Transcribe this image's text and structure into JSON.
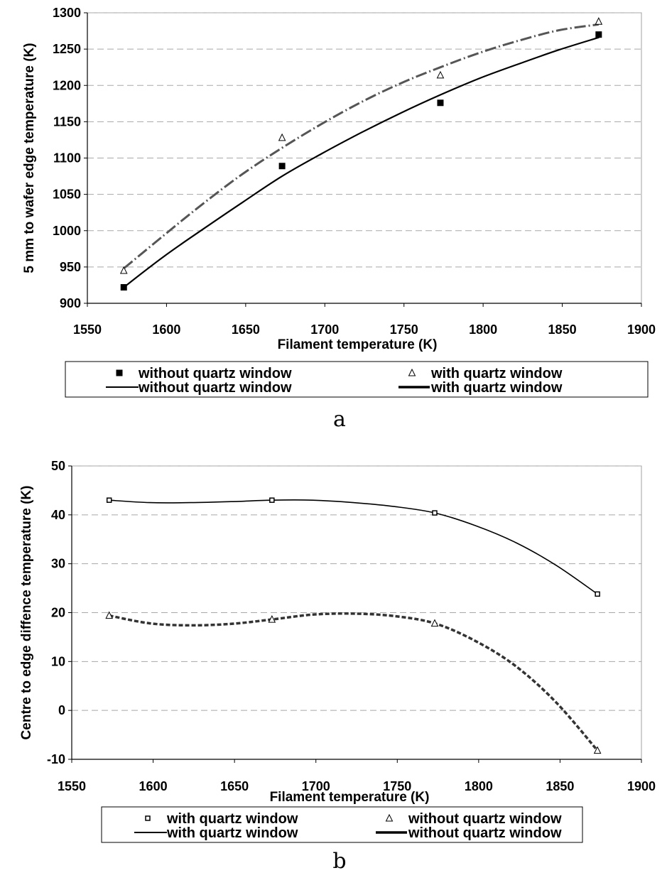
{
  "chart_data": [
    {
      "type": "scatter",
      "panel_label": "a",
      "xlabel": "Filament temperature (K)",
      "ylabel": "5 mm to wafer edge temperature (K)",
      "xlim": [
        1550,
        1900
      ],
      "ylim": [
        900,
        1300
      ],
      "xticks": [
        1550,
        1600,
        1650,
        1700,
        1750,
        1800,
        1850,
        1900
      ],
      "yticks": [
        900,
        950,
        1000,
        1050,
        1100,
        1150,
        1200,
        1250,
        1300
      ],
      "grid": "horizontal dashed",
      "legend_position": "bottom",
      "series": [
        {
          "name": "without quartz window",
          "kind": "points",
          "marker": "filled-square",
          "x": [
            1573,
            1673,
            1773,
            1873
          ],
          "y": [
            922,
            1089,
            1176,
            1270
          ]
        },
        {
          "name": "with quartz window",
          "kind": "points",
          "marker": "open-triangle",
          "x": [
            1573,
            1673,
            1773,
            1873
          ],
          "y": [
            945,
            1128,
            1214,
            1288
          ]
        },
        {
          "name": "without quartz window",
          "kind": "trendline",
          "style": "solid",
          "x": [
            1573,
            1598,
            1623,
            1648,
            1673,
            1698,
            1723,
            1748,
            1773,
            1798,
            1823,
            1848,
            1873
          ],
          "y": [
            922,
            964,
            1002,
            1039,
            1075,
            1106,
            1135,
            1162,
            1187,
            1210,
            1230,
            1249,
            1266
          ]
        },
        {
          "name": "with quartz window",
          "kind": "trendline",
          "style": "dashed",
          "x": [
            1573,
            1598,
            1623,
            1648,
            1673,
            1698,
            1723,
            1748,
            1773,
            1798,
            1823,
            1848,
            1873
          ],
          "y": [
            948,
            993,
            1037,
            1078,
            1114,
            1147,
            1177,
            1203,
            1225,
            1245,
            1262,
            1276,
            1284
          ]
        }
      ],
      "legend": [
        {
          "label": "without quartz window",
          "symbol": "filled-square"
        },
        {
          "label": "with quartz window",
          "symbol": "open-triangle"
        },
        {
          "label": "without quartz window",
          "symbol": "thin-line"
        },
        {
          "label": "with quartz window",
          "symbol": "thick-line"
        }
      ]
    },
    {
      "type": "line",
      "panel_label": "b",
      "xlabel": "Filament temperature (K)",
      "ylabel": "Centre to edge diffence temperature (K)",
      "xlim": [
        1550,
        1900
      ],
      "ylim": [
        -10,
        50
      ],
      "xticks": [
        1550,
        1600,
        1650,
        1700,
        1750,
        1800,
        1850,
        1900
      ],
      "yticks": [
        -10,
        0,
        10,
        20,
        30,
        40,
        50
      ],
      "grid": "horizontal dashed",
      "legend_position": "bottom",
      "series": [
        {
          "name": "with quartz window",
          "kind": "points",
          "marker": "small-square",
          "x": [
            1573,
            1673,
            1773,
            1873
          ],
          "y": [
            43,
            43,
            40.4,
            23.8
          ]
        },
        {
          "name": "without quartz window",
          "kind": "points",
          "marker": "open-triangle",
          "x": [
            1573,
            1673,
            1773,
            1873
          ],
          "y": [
            19.4,
            18.6,
            17.8,
            -8.2
          ]
        },
        {
          "name": "with quartz window",
          "kind": "curve",
          "style": "solid",
          "x": [
            1573,
            1598,
            1623,
            1648,
            1673,
            1698,
            1723,
            1748,
            1773,
            1798,
            1823,
            1848,
            1873
          ],
          "y": [
            43,
            42.5,
            42.5,
            42.7,
            43,
            43,
            42.5,
            41.7,
            40.4,
            37.8,
            34.3,
            29.6,
            23.8
          ]
        },
        {
          "name": "without quartz window",
          "kind": "curve",
          "style": "thick-dashed",
          "x": [
            1573,
            1598,
            1623,
            1648,
            1673,
            1698,
            1723,
            1748,
            1773,
            1798,
            1823,
            1848,
            1873
          ],
          "y": [
            19.4,
            17.8,
            17.4,
            17.7,
            18.6,
            19.6,
            19.8,
            19.3,
            17.8,
            14.2,
            9.0,
            1.5,
            -8.2
          ]
        }
      ],
      "legend": [
        {
          "label": "with quartz window",
          "symbol": "small-square"
        },
        {
          "label": "without quartz window",
          "symbol": "open-triangle"
        },
        {
          "label": "with quartz window",
          "symbol": "thin-line"
        },
        {
          "label": "without quartz window",
          "symbol": "thick-line"
        }
      ]
    }
  ]
}
